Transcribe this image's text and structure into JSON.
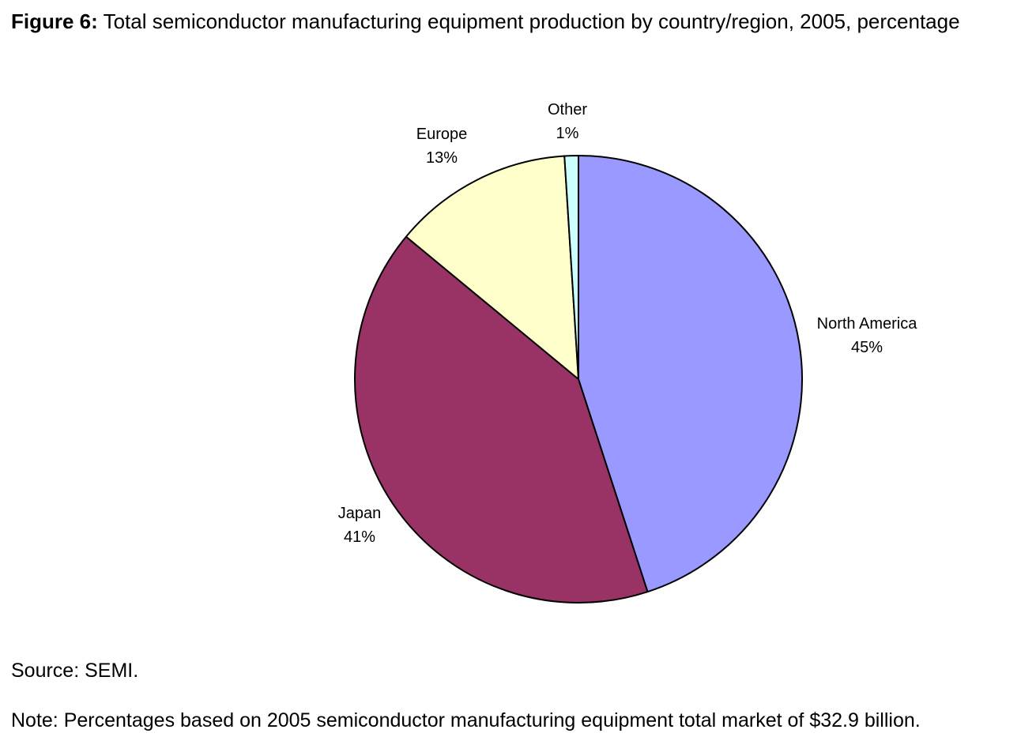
{
  "header": {
    "figure_label": "Figure 6:",
    "title": "Total semiconductor manufacturing equipment production by country/region, 2005, percentage"
  },
  "chart_data": {
    "type": "pie",
    "title": "Total semiconductor manufacturing equipment production by country/region, 2005, percentage",
    "slices": [
      {
        "label": "North America",
        "value": 45,
        "value_label": "45%",
        "color": "#9999FF"
      },
      {
        "label": "Japan",
        "value": 41,
        "value_label": "41%",
        "color": "#993366"
      },
      {
        "label": "Europe",
        "value": 13,
        "value_label": "13%",
        "color": "#FFFFCC"
      },
      {
        "label": "Other",
        "value": 1,
        "value_label": "1%",
        "color": "#CCFFFF"
      }
    ],
    "start_angle_deg": 0,
    "direction": "clockwise",
    "legend": "none"
  },
  "footer": {
    "source": "Source: SEMI.",
    "note": "Note: Percentages based on 2005 semiconductor manufacturing equipment total market of $32.9 billion."
  }
}
